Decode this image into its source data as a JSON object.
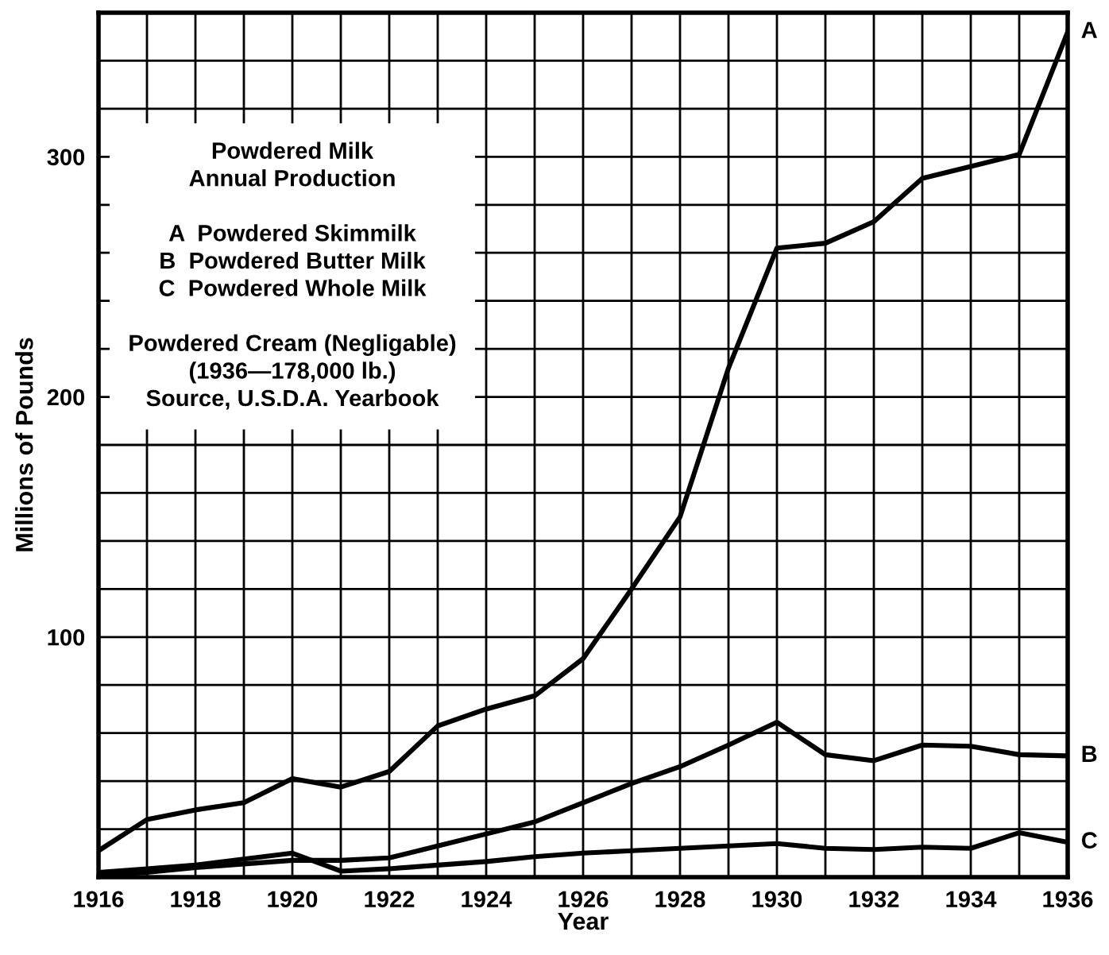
{
  "chart_data": {
    "type": "line",
    "xlabel": "Year",
    "ylabel": "Millions of Pounds",
    "x": [
      1916,
      1917,
      1918,
      1919,
      1920,
      1921,
      1922,
      1923,
      1924,
      1925,
      1926,
      1927,
      1928,
      1929,
      1930,
      1931,
      1932,
      1933,
      1934,
      1935,
      1936
    ],
    "series": [
      {
        "name": "A",
        "color": "#000000",
        "values": [
          11,
          24,
          28,
          31,
          41,
          37.5,
          44,
          63,
          70,
          75.5,
          91,
          120,
          150,
          212,
          262,
          264,
          273,
          291,
          296,
          301,
          352
        ]
      },
      {
        "name": "B",
        "color": "#000000",
        "values": [
          0.5,
          2,
          4,
          5.5,
          7,
          7,
          8,
          13,
          18,
          23,
          31,
          39,
          46,
          55,
          64.5,
          51,
          48.5,
          55,
          54.5,
          51,
          50.5
        ]
      },
      {
        "name": "C",
        "color": "#000000",
        "values": [
          2,
          3.5,
          5,
          7.5,
          10,
          2.5,
          3.5,
          5,
          6.5,
          8.5,
          10,
          11,
          12,
          13,
          14,
          12,
          11.5,
          12.5,
          12,
          18.5,
          14.5
        ]
      }
    ],
    "xlim": [
      1916,
      1936
    ],
    "xticks": [
      1916,
      {
        "value": 1917,
        "label": null
      },
      1918,
      {
        "value": 1919,
        "label": null
      },
      1920,
      {
        "value": 1921,
        "label": null
      },
      1922,
      {
        "value": 1923,
        "label": null
      },
      1924,
      {
        "value": 1925,
        "label": null
      },
      1926,
      {
        "value": 1927,
        "label": null
      },
      1928,
      {
        "value": 1929,
        "label": null
      },
      1930,
      {
        "value": 1931,
        "label": null
      },
      1932,
      {
        "value": 1933,
        "label": null
      },
      1934,
      {
        "value": 1935,
        "label": null
      },
      1936
    ],
    "ylim": [
      0,
      360
    ],
    "yticks": [
      {
        "value": 0,
        "label": null
      },
      {
        "value": 20,
        "label": null
      },
      {
        "value": 40,
        "label": null
      },
      {
        "value": 60,
        "label": null
      },
      {
        "value": 80,
        "label": null
      },
      100,
      {
        "value": 120,
        "label": null
      },
      {
        "value": 140,
        "label": null
      },
      {
        "value": 160,
        "label": null
      },
      {
        "value": 180,
        "label": null
      },
      200,
      {
        "value": 220,
        "label": null
      },
      {
        "value": 240,
        "label": null
      },
      {
        "value": 260,
        "label": null
      },
      {
        "value": 280,
        "label": null
      },
      300,
      {
        "value": 320,
        "label": null
      },
      {
        "value": 340,
        "label": null
      },
      {
        "value": 360,
        "label": null
      }
    ],
    "grid": true,
    "legend": false,
    "marker": "none",
    "line_style": "solid",
    "annotations": [
      "Powdered Milk\nAnnual Production",
      "A  Powdered Skimmilk\nB  Powdered Butter Milk\nC  Powdered Whole Milk",
      "Powdered Cream (Negligable)\n(1936—178,000 lb.)\nSource, U.S.D.A. Yearbook"
    ]
  }
}
